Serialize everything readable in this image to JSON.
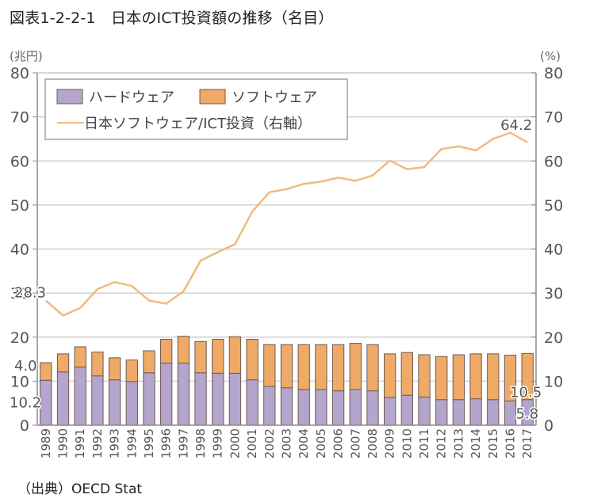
{
  "title": "図表1-2-2-1　日本のICT投資額の推移（名目）",
  "source": "（出典）OECD Stat",
  "chart_data": {
    "type": "bar",
    "subtype": "stacked bar with line on secondary axis",
    "title": "図表1-2-2-1　日本のICT投資額の推移（名目）",
    "xlabel": "",
    "ylabel": "(兆円)",
    "ylabel_right": "(%)",
    "ylim": [
      0,
      80
    ],
    "ylim_right": [
      0,
      80
    ],
    "yticks": [
      0,
      10,
      20,
      30,
      40,
      50,
      60,
      70,
      80
    ],
    "yticks_right": [
      0,
      10,
      20,
      30,
      40,
      50,
      60,
      70,
      80
    ],
    "grid": true,
    "legend_position": "top-left",
    "categories": [
      "1989",
      "1990",
      "1991",
      "1992",
      "1993",
      "1994",
      "1995",
      "1996",
      "1997",
      "1998",
      "1999",
      "2000",
      "2001",
      "2002",
      "2003",
      "2004",
      "2005",
      "2006",
      "2007",
      "2008",
      "2009",
      "2010",
      "2011",
      "2012",
      "2013",
      "2014",
      "2015",
      "2016",
      "2017"
    ],
    "series": [
      {
        "name": "ハードウェア",
        "type": "bar",
        "axis": "left",
        "color": "#b4a5cc",
        "values": [
          10.2,
          12.1,
          13.2,
          11.2,
          10.3,
          9.9,
          11.9,
          14.1,
          14.1,
          11.9,
          11.8,
          11.8,
          10.3,
          8.8,
          8.5,
          8.1,
          8.1,
          7.8,
          8.1,
          7.8,
          6.3,
          6.8,
          6.4,
          5.8,
          5.8,
          6.0,
          5.8,
          5.5,
          5.8
        ]
      },
      {
        "name": "ソフトウェア",
        "type": "bar",
        "axis": "left",
        "color": "#eeaa66",
        "values": [
          4.0,
          4.1,
          4.6,
          5.4,
          5.0,
          4.9,
          5.0,
          5.4,
          6.1,
          7.1,
          7.7,
          8.3,
          9.2,
          9.5,
          9.8,
          10.2,
          10.2,
          10.5,
          10.5,
          10.5,
          9.9,
          9.7,
          9.6,
          9.8,
          10.2,
          10.2,
          10.4,
          10.4,
          10.5
        ]
      },
      {
        "name": "日本ソフトウェア/ICT投資（右軸）",
        "type": "line",
        "axis": "right",
        "color": "#eebb80",
        "values": [
          28.3,
          24.9,
          26.6,
          30.9,
          32.5,
          31.6,
          28.3,
          27.6,
          30.4,
          37.4,
          39.3,
          41.1,
          48.5,
          52.9,
          53.6,
          54.8,
          55.3,
          56.2,
          55.5,
          56.7,
          60.1,
          58.1,
          58.6,
          62.7,
          63.3,
          62.4,
          65.0,
          66.4,
          64.2
        ]
      }
    ],
    "annotations": [
      {
        "text": "28.3",
        "series": "日本ソフトウェア/ICT投資（右軸）",
        "category": "1989"
      },
      {
        "text": "4.0",
        "series": "ソフトウェア",
        "category": "1989"
      },
      {
        "text": "10.2",
        "series": "ハードウェア",
        "category": "1989"
      },
      {
        "text": "64.2",
        "series": "日本ソフトウェア/ICT投資（右軸）",
        "category": "2017"
      },
      {
        "text": "10.5",
        "series": "ソフトウェア",
        "category": "2017"
      },
      {
        "text": "5.8",
        "series": "ハードウェア",
        "category": "2017"
      }
    ],
    "colors": {
      "hardware_fill": "#b4a5cc",
      "software_fill": "#eeaa66",
      "bar_stroke": "#6e5a55",
      "line": "#eebb80",
      "grid": "#d0d0d0",
      "axis": "#8a8a8a"
    }
  }
}
